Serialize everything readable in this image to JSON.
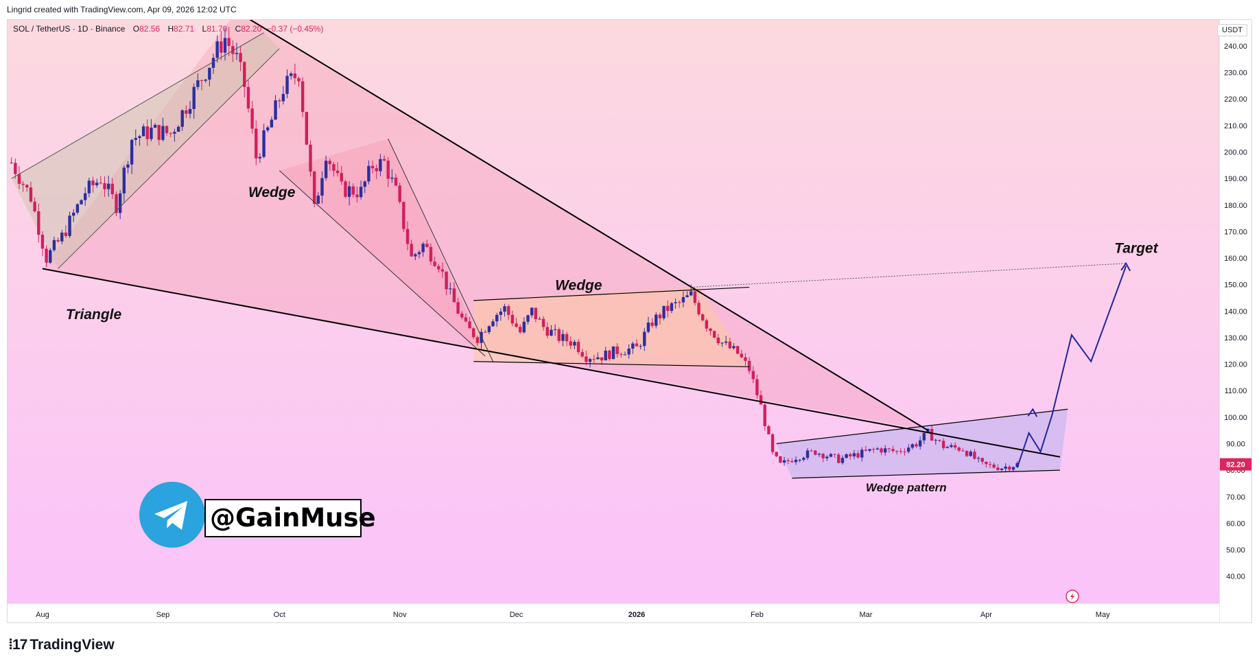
{
  "header": {
    "caption": "Lingrid created with TradingView.com, Apr 09, 2026 12:02 UTC"
  },
  "symbol_info": {
    "pair": "SOL / TetherUS · 1D · Binance",
    "open_label": "O",
    "open": "82.56",
    "high_label": "H",
    "high": "82.71",
    "low_label": "L",
    "low": "81.70",
    "close_label": "C",
    "close": "82.20",
    "change": "−0.37 (−0.45%)"
  },
  "price_axis": {
    "unit": "USDT",
    "last_price": "82.20",
    "last_price_color": "#e0245e"
  },
  "annotations": {
    "triangle": "Triangle",
    "wedge_1": "Wedge",
    "wedge_2": "Wedge",
    "wedge_pattern": "Wedge pattern",
    "target": "Target"
  },
  "watermark": {
    "handle": "@GainMuse",
    "icon": "telegram-icon"
  },
  "footer": {
    "brand": "TradingView",
    "icon": "tradingview-logo-icon"
  },
  "colors": {
    "bg_top": "#fcd9df",
    "bg_bottom": "#fbc3fa",
    "bull": "#2b2f9e",
    "bear": "#d21f5b",
    "projection": "#22259a",
    "accent": "#e0245e"
  },
  "chart_data": {
    "type": "candlestick",
    "title": "SOL / TetherUS · 1D · Binance",
    "ylabel": "USDT",
    "ylim": [
      35,
      255
    ],
    "y_ticks": [
      40,
      50,
      60,
      70,
      80,
      90,
      100,
      110,
      120,
      130,
      140,
      150,
      160,
      170,
      180,
      190,
      200,
      210,
      220,
      230,
      240
    ],
    "x_ticks": [
      "Aug",
      "Sep",
      "Oct",
      "Nov",
      "Dec",
      "2026",
      "Feb",
      "Mar",
      "Apr",
      "May"
    ],
    "grid": false,
    "legend": "none",
    "series": [
      {
        "name": "SOL / TetherUS",
        "x_range": [
          "2025-07-24",
          "2026-04-09"
        ],
        "close_path": [
          [
            "2025-07-24",
            196
          ],
          [
            "2025-07-29",
            183
          ],
          [
            "2025-08-02",
            160
          ],
          [
            "2025-08-06",
            168
          ],
          [
            "2025-08-12",
            185
          ],
          [
            "2025-08-16",
            190
          ],
          [
            "2025-08-20",
            180
          ],
          [
            "2025-08-24",
            205
          ],
          [
            "2025-08-29",
            208
          ],
          [
            "2025-09-03",
            207
          ],
          [
            "2025-09-08",
            220
          ],
          [
            "2025-09-14",
            236
          ],
          [
            "2025-09-17",
            243
          ],
          [
            "2025-09-20",
            235
          ],
          [
            "2025-09-22",
            225
          ],
          [
            "2025-09-25",
            198
          ],
          [
            "2025-09-28",
            208
          ],
          [
            "2025-10-02",
            224
          ],
          [
            "2025-10-06",
            230
          ],
          [
            "2025-10-10",
            178
          ],
          [
            "2025-10-13",
            200
          ],
          [
            "2025-10-17",
            186
          ],
          [
            "2025-10-22",
            185
          ],
          [
            "2025-10-25",
            195
          ],
          [
            "2025-10-28",
            196
          ],
          [
            "2025-10-31",
            185
          ],
          [
            "2025-11-04",
            160
          ],
          [
            "2025-11-07",
            165
          ],
          [
            "2025-11-11",
            158
          ],
          [
            "2025-11-14",
            146
          ],
          [
            "2025-11-18",
            134
          ],
          [
            "2025-11-21",
            130
          ],
          [
            "2025-11-25",
            138
          ],
          [
            "2025-11-28",
            141
          ],
          [
            "2025-12-02",
            132
          ],
          [
            "2025-12-05",
            140
          ],
          [
            "2025-12-08",
            134
          ],
          [
            "2025-12-12",
            130
          ],
          [
            "2025-12-16",
            128
          ],
          [
            "2025-12-19",
            123
          ],
          [
            "2025-12-23",
            123
          ],
          [
            "2025-12-27",
            125
          ],
          [
            "2026-01-01",
            126
          ],
          [
            "2026-01-05",
            136
          ],
          [
            "2026-01-09",
            141
          ],
          [
            "2026-01-12",
            143
          ],
          [
            "2026-01-15",
            146
          ],
          [
            "2026-01-19",
            135
          ],
          [
            "2026-01-23",
            128
          ],
          [
            "2026-01-27",
            124
          ],
          [
            "2026-01-30",
            118
          ],
          [
            "2026-02-02",
            104
          ],
          [
            "2026-02-05",
            86
          ],
          [
            "2026-02-07",
            82
          ],
          [
            "2026-02-11",
            85
          ],
          [
            "2026-02-16",
            87
          ],
          [
            "2026-02-22",
            84
          ],
          [
            "2026-02-27",
            86
          ],
          [
            "2026-03-04",
            88
          ],
          [
            "2026-03-09",
            87
          ],
          [
            "2026-03-14",
            90
          ],
          [
            "2026-03-17",
            94
          ],
          [
            "2026-03-21",
            89
          ],
          [
            "2026-03-26",
            88
          ],
          [
            "2026-03-31",
            82
          ],
          [
            "2026-04-05",
            81
          ],
          [
            "2026-04-09",
            82.2
          ]
        ]
      }
    ],
    "trendlines": [
      {
        "label": "Triangle",
        "from": [
          "2025-08-01",
          156
        ],
        "to": [
          "2026-04-20",
          85
        ]
      },
      {
        "label": "Triangle",
        "from": [
          "2025-09-20",
          253
        ],
        "to": [
          "2026-03-17",
          95
        ]
      },
      {
        "label": "Wedge",
        "from": [
          "2025-11-20",
          144
        ],
        "to": [
          "2026-01-30",
          149
        ]
      },
      {
        "label": "Wedge",
        "from": [
          "2025-11-20",
          121
        ],
        "to": [
          "2026-01-30",
          119
        ]
      },
      {
        "label": "Wedge pattern",
        "from": [
          "2026-02-06",
          90
        ],
        "to": [
          "2026-04-22",
          103
        ]
      },
      {
        "label": "Wedge pattern",
        "from": [
          "2026-02-10",
          77
        ],
        "to": [
          "2026-04-20",
          80
        ]
      }
    ],
    "projection": {
      "label": "Target",
      "target": 158,
      "path": [
        [
          "2026-04-09",
          81
        ],
        [
          "2026-04-12",
          94
        ],
        [
          "2026-04-15",
          87
        ],
        [
          "2026-04-18",
          101
        ],
        [
          "2026-04-23",
          131
        ],
        [
          "2026-04-28",
          121
        ],
        [
          "2026-05-07",
          157
        ]
      ]
    }
  }
}
